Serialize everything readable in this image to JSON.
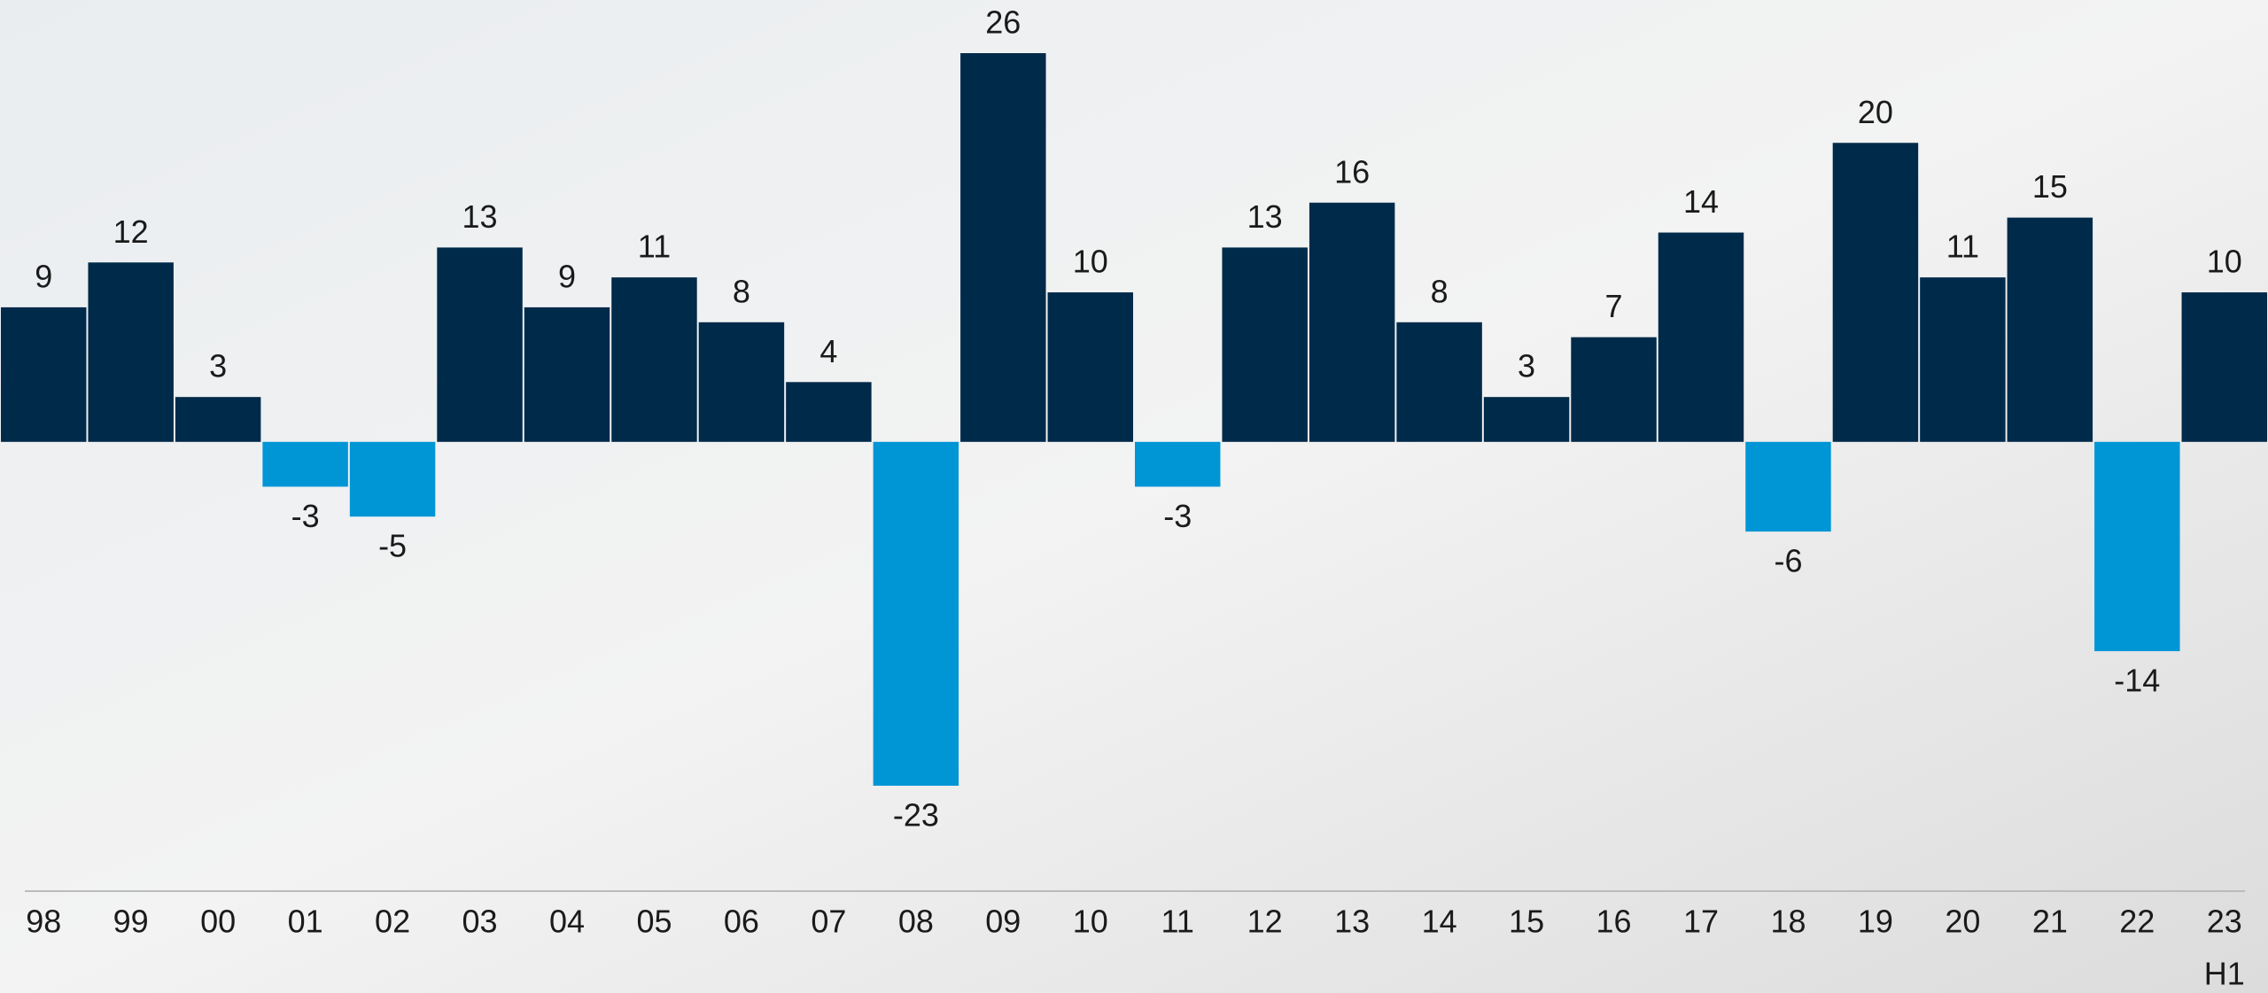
{
  "chart_data": {
    "type": "bar",
    "categories": [
      "98",
      "99",
      "00",
      "01",
      "02",
      "03",
      "04",
      "05",
      "06",
      "07",
      "08",
      "09",
      "10",
      "11",
      "12",
      "13",
      "14",
      "15",
      "16",
      "17",
      "18",
      "19",
      "20",
      "21",
      "22",
      "23"
    ],
    "values": [
      9,
      12,
      3,
      -3,
      -5,
      13,
      9,
      11,
      8,
      4,
      -23,
      26,
      10,
      -3,
      13,
      16,
      8,
      3,
      7,
      14,
      -6,
      20,
      11,
      15,
      -14,
      10
    ],
    "colors": {
      "positive": "#002a4a",
      "negative": "#0096d6"
    },
    "last_category_note": "H1"
  }
}
